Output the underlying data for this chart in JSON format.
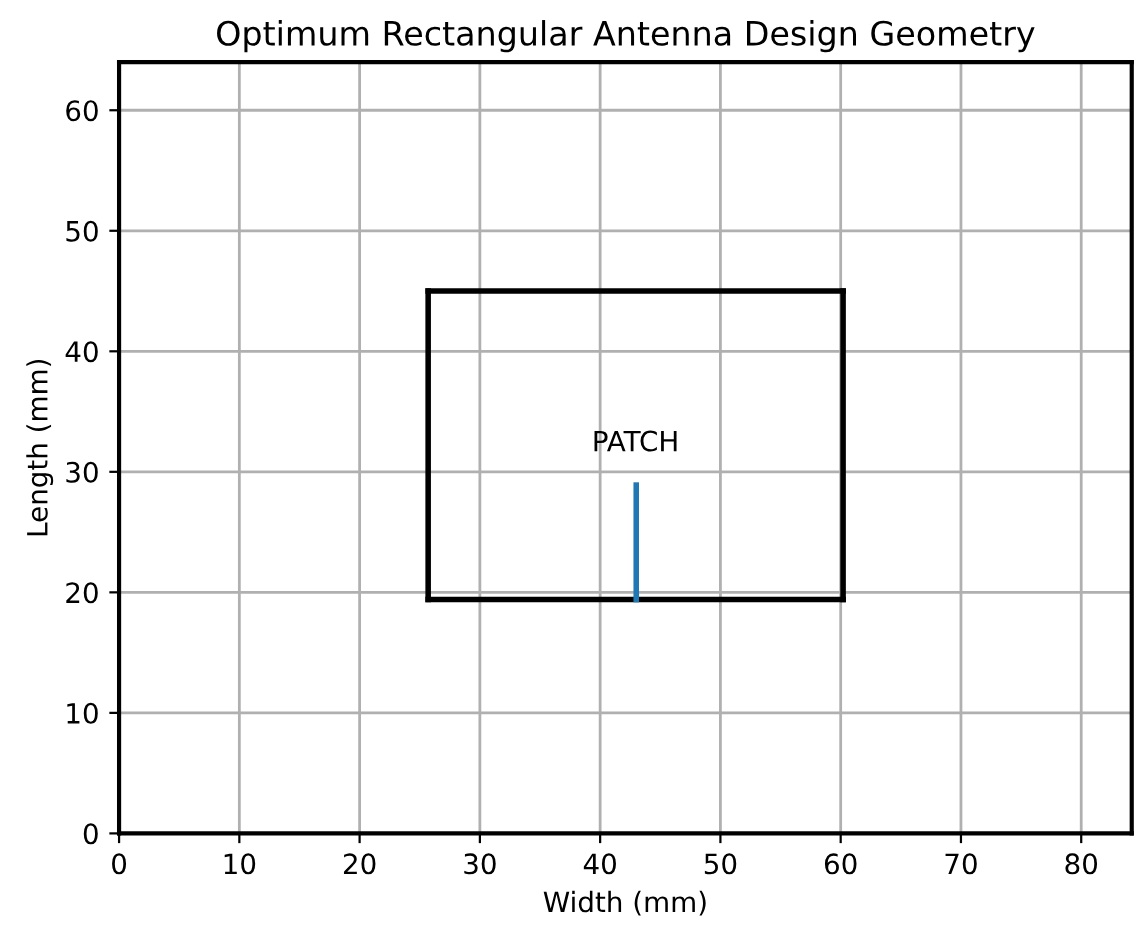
{
  "chart_data": {
    "type": "line",
    "title": "Optimum Rectangular Antenna Design Geometry",
    "xlabel": "Width (mm)",
    "ylabel": "Length (mm)",
    "series": [
      {
        "color": "#000000",
        "x": [
          25.7,
          60.2
        ],
        "values": [
          19.4,
          19.4
        ]
      },
      {
        "color": "#000000",
        "x": [
          60.2,
          60.2
        ],
        "values": [
          19.4,
          45.0
        ]
      },
      {
        "color": "#000000",
        "x": [
          60.2,
          25.7
        ],
        "values": [
          45.0,
          45.0
        ]
      },
      {
        "color": "#000000",
        "x": [
          25.7,
          25.7
        ],
        "values": [
          45.0,
          19.4
        ]
      },
      {
        "color": "#1f77b4",
        "x": [
          43.0,
          43.0
        ],
        "values": [
          19.4,
          28.9
        ]
      }
    ],
    "annotations": [
      "PATCH"
    ],
    "xlim": [
      0,
      84.2
    ],
    "ylim": [
      0,
      64
    ],
    "xticks": [
      0,
      10,
      20,
      30,
      40,
      50,
      60,
      70,
      80
    ],
    "yticks": [
      0,
      10,
      20,
      30,
      40,
      50,
      60
    ],
    "grid": true,
    "legend": false
  }
}
